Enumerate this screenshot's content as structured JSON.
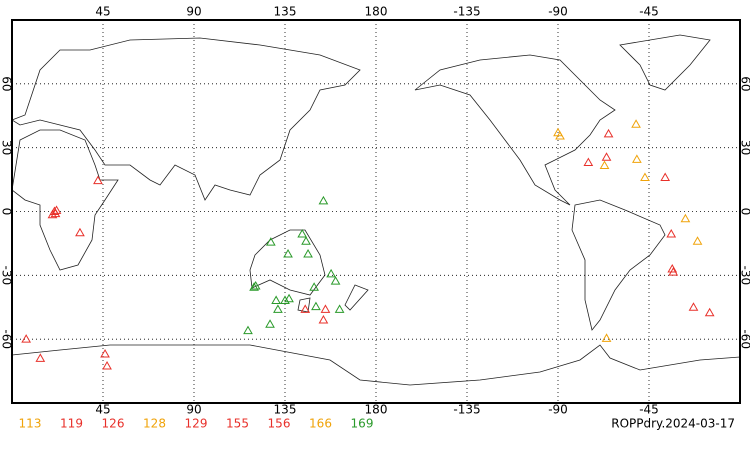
{
  "chart_data": {
    "type": "scatter",
    "title": "ROPPdry.2024-03-17",
    "xlim": [
      0,
      360
    ],
    "ylim": [
      -90,
      90
    ],
    "xticks": [
      45,
      90,
      135,
      180,
      {
        "value": 225,
        "label": "-135"
      },
      {
        "value": 270,
        "label": "-90"
      },
      {
        "value": 315,
        "label": "-45"
      }
    ],
    "yticks": [
      60,
      30,
      0,
      -30,
      -60
    ],
    "grid": true,
    "series": [
      {
        "name": "113",
        "color": "#f0a30a",
        "x": [
          270,
          308.6,
          309
        ],
        "y": [
          37,
          41,
          24.5
        ]
      },
      {
        "name": "119",
        "color": "#e8302a",
        "x": [
          21,
          20,
          22,
          21.5,
          42.5
        ],
        "y": [
          0,
          -1.5,
          0.5,
          -1,
          14.5
        ]
      },
      {
        "name": "126",
        "color": "#e8302a",
        "x": [
          33.6,
          7,
          14,
          46,
          47
        ],
        "y": [
          -10,
          -60,
          -69,
          -67,
          -72.6
        ]
      },
      {
        "name": "128",
        "color": "#f0a30a",
        "x": [
          293,
          313,
          271
        ],
        "y": [
          21.6,
          16,
          35.5
        ]
      },
      {
        "name": "129",
        "color": "#e8302a",
        "x": [
          145,
          155,
          154
        ],
        "y": [
          -46,
          -46,
          -51
        ]
      },
      {
        "name": "155",
        "color": "#e8302a",
        "x": [
          285,
          295,
          294,
          323
        ],
        "y": [
          23,
          36.5,
          25.5,
          16
        ]
      },
      {
        "name": "156",
        "color": "#e8302a",
        "x": [
          326,
          326.5,
          327,
          337,
          345
        ],
        "y": [
          -10.6,
          -27,
          -28.5,
          -45,
          -47.6
        ]
      },
      {
        "name": "166",
        "color": "#f0a30a",
        "x": [
          333,
          339,
          294
        ],
        "y": [
          -3.4,
          -14,
          -59.6
        ]
      },
      {
        "name": "169",
        "color": "#2a9a2a",
        "x": [
          154,
          128,
          136.5,
          145.4,
          146.4,
          143.5,
          157.8,
          160,
          119.7,
          120.5,
          130.6,
          135,
          137,
          149.4,
          150.3,
          162,
          116.7,
          127.6,
          131.5
        ],
        "y": [
          5,
          -14.4,
          -20,
          -14,
          -20,
          -10.6,
          -29.3,
          -32.7,
          -35.6,
          -35,
          -41.8,
          -41.8,
          -41,
          -35.6,
          -44.7,
          -46,
          -56,
          -53,
          -46
        ]
      }
    ]
  }
}
